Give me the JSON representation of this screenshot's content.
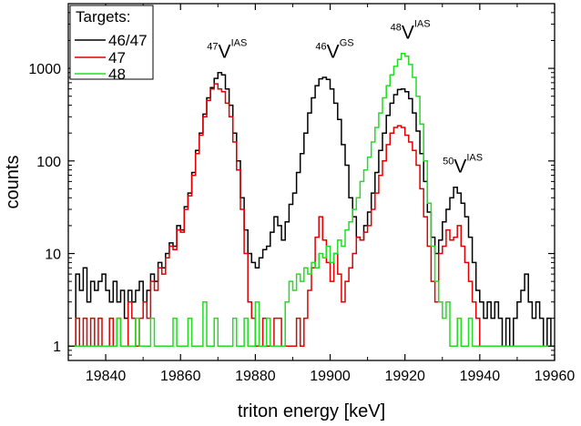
{
  "chart_data": {
    "type": "line",
    "xlabel": "triton energy [keV]",
    "ylabel": "counts",
    "xlim": [
      19830,
      19960
    ],
    "ylim": [
      0.7,
      5000
    ],
    "yscale": "log",
    "step": true,
    "x_ticks": [
      19840,
      19860,
      19880,
      19900,
      19920,
      19940,
      19960
    ],
    "y_ticks": [
      1,
      10,
      100,
      1000
    ],
    "legend": {
      "title": "Targets:",
      "position": "top-left"
    },
    "colors": {
      "46/47": "#000000",
      "47": "#e00000",
      "48": "#22dd22"
    },
    "annotations": [
      {
        "sup": "47",
        "base": "V",
        "super2": "IAS",
        "x": 19870,
        "y": 1300
      },
      {
        "sup": "46",
        "base": "V",
        "super2": "GS",
        "x": 19899,
        "y": 1300
      },
      {
        "sup": "48",
        "base": "V",
        "super2": "IAS",
        "x": 19919,
        "y": 2100
      },
      {
        "sup": "50",
        "base": "V",
        "super2": "IAS",
        "x": 19933,
        "y": 75
      }
    ],
    "series": [
      {
        "name": "46/47",
        "color": "#000000",
        "points": [
          [
            19830,
            1
          ],
          [
            19832,
            6
          ],
          [
            19833,
            4
          ],
          [
            19834,
            7
          ],
          [
            19835,
            3
          ],
          [
            19836,
            5
          ],
          [
            19837,
            4
          ],
          [
            19838,
            5
          ],
          [
            19839,
            6
          ],
          [
            19840,
            4
          ],
          [
            19841,
            3
          ],
          [
            19842,
            5
          ],
          [
            19843,
            3
          ],
          [
            19844,
            4
          ],
          [
            19845,
            2
          ],
          [
            19846,
            4
          ],
          [
            19847,
            3
          ],
          [
            19848,
            4
          ],
          [
            19849,
            5
          ],
          [
            19850,
            3
          ],
          [
            19851,
            4
          ],
          [
            19852,
            6
          ],
          [
            19853,
            5
          ],
          [
            19854,
            8
          ],
          [
            19855,
            7
          ],
          [
            19856,
            10
          ],
          [
            19857,
            13
          ],
          [
            19858,
            12
          ],
          [
            19859,
            20
          ],
          [
            19860,
            18
          ],
          [
            19861,
            32
          ],
          [
            19862,
            45
          ],
          [
            19863,
            75
          ],
          [
            19864,
            130
          ],
          [
            19865,
            200
          ],
          [
            19866,
            320
          ],
          [
            19867,
            480
          ],
          [
            19868,
            620
          ],
          [
            19869,
            780
          ],
          [
            19870,
            900
          ],
          [
            19871,
            850
          ],
          [
            19872,
            600
          ],
          [
            19873,
            400
          ],
          [
            19874,
            200
          ],
          [
            19875,
            100
          ],
          [
            19876,
            40
          ],
          [
            19877,
            18
          ],
          [
            19878,
            10
          ],
          [
            19879,
            8
          ],
          [
            19880,
            7
          ],
          [
            19881,
            9
          ],
          [
            19882,
            11
          ],
          [
            19883,
            12
          ],
          [
            19884,
            17
          ],
          [
            19885,
            25
          ],
          [
            19886,
            20
          ],
          [
            19887,
            14
          ],
          [
            19888,
            22
          ],
          [
            19889,
            34
          ],
          [
            19890,
            45
          ],
          [
            19891,
            75
          ],
          [
            19892,
            120
          ],
          [
            19893,
            200
          ],
          [
            19894,
            330
          ],
          [
            19895,
            480
          ],
          [
            19896,
            650
          ],
          [
            19897,
            770
          ],
          [
            19898,
            800
          ],
          [
            19899,
            760
          ],
          [
            19900,
            600
          ],
          [
            19901,
            420
          ],
          [
            19902,
            280
          ],
          [
            19903,
            150
          ],
          [
            19904,
            90
          ],
          [
            19905,
            40
          ],
          [
            19906,
            25
          ],
          [
            19907,
            15
          ],
          [
            19908,
            14
          ],
          [
            19909,
            20
          ],
          [
            19910,
            28
          ],
          [
            19911,
            45
          ],
          [
            19912,
            75
          ],
          [
            19913,
            130
          ],
          [
            19914,
            200
          ],
          [
            19915,
            310
          ],
          [
            19916,
            420
          ],
          [
            19917,
            520
          ],
          [
            19918,
            590
          ],
          [
            19919,
            600
          ],
          [
            19920,
            560
          ],
          [
            19921,
            470
          ],
          [
            19922,
            330
          ],
          [
            19923,
            210
          ],
          [
            19924,
            120
          ],
          [
            19925,
            60
          ],
          [
            19926,
            28
          ],
          [
            19927,
            15
          ],
          [
            19928,
            10
          ],
          [
            19929,
            14
          ],
          [
            19930,
            22
          ],
          [
            19931,
            30
          ],
          [
            19932,
            40
          ],
          [
            19933,
            52
          ],
          [
            19934,
            45
          ],
          [
            19935,
            35
          ],
          [
            19936,
            25
          ],
          [
            19937,
            15
          ],
          [
            19938,
            8
          ],
          [
            19939,
            4
          ],
          [
            19940,
            3
          ],
          [
            19941,
            2
          ],
          [
            19942,
            3
          ],
          [
            19943,
            2
          ],
          [
            19944,
            3
          ],
          [
            19945,
            2
          ],
          [
            19946,
            1
          ],
          [
            19947,
            2
          ],
          [
            19948,
            1
          ],
          [
            19949,
            2
          ],
          [
            19950,
            3
          ],
          [
            19951,
            4
          ],
          [
            19952,
            6
          ],
          [
            19953,
            3
          ],
          [
            19954,
            2
          ],
          [
            19955,
            3
          ],
          [
            19956,
            2
          ],
          [
            19957,
            1
          ],
          [
            19958,
            2
          ],
          [
            19959,
            1
          ],
          [
            19960,
            1
          ]
        ]
      },
      {
        "name": "47",
        "color": "#e00000",
        "points": [
          [
            19830,
            1
          ],
          [
            19832,
            2
          ],
          [
            19833,
            1
          ],
          [
            19834,
            2
          ],
          [
            19835,
            1
          ],
          [
            19836,
            2
          ],
          [
            19837,
            1
          ],
          [
            19838,
            2
          ],
          [
            19839,
            1
          ],
          [
            19840,
            1
          ],
          [
            19841,
            2
          ],
          [
            19842,
            1
          ],
          [
            19843,
            2
          ],
          [
            19844,
            1
          ],
          [
            19845,
            1
          ],
          [
            19846,
            3
          ],
          [
            19847,
            2
          ],
          [
            19848,
            1
          ],
          [
            19849,
            2
          ],
          [
            19850,
            3
          ],
          [
            19851,
            2
          ],
          [
            19852,
            5
          ],
          [
            19853,
            4
          ],
          [
            19854,
            7
          ],
          [
            19855,
            6
          ],
          [
            19856,
            9
          ],
          [
            19857,
            12
          ],
          [
            19858,
            11
          ],
          [
            19859,
            18
          ],
          [
            19860,
            17
          ],
          [
            19861,
            30
          ],
          [
            19862,
            42
          ],
          [
            19863,
            70
          ],
          [
            19864,
            120
          ],
          [
            19865,
            190
          ],
          [
            19866,
            300
          ],
          [
            19867,
            450
          ],
          [
            19868,
            600
          ],
          [
            19869,
            680
          ],
          [
            19870,
            600
          ],
          [
            19871,
            560
          ],
          [
            19872,
            420
          ],
          [
            19873,
            300
          ],
          [
            19874,
            160
          ],
          [
            19875,
            80
          ],
          [
            19876,
            30
          ],
          [
            19877,
            10
          ],
          [
            19878,
            3
          ],
          [
            19879,
            2
          ],
          [
            19880,
            1
          ],
          [
            19882,
            2
          ],
          [
            19883,
            1
          ],
          [
            19885,
            2
          ],
          [
            19887,
            1
          ],
          [
            19890,
            1
          ],
          [
            19891,
            2
          ],
          [
            19892,
            1
          ],
          [
            19893,
            2
          ],
          [
            19894,
            4
          ],
          [
            19895,
            7
          ],
          [
            19896,
            15
          ],
          [
            19897,
            25
          ],
          [
            19898,
            14
          ],
          [
            19899,
            8
          ],
          [
            19900,
            5
          ],
          [
            19901,
            10
          ],
          [
            19902,
            6
          ],
          [
            19903,
            3
          ],
          [
            19904,
            5
          ],
          [
            19905,
            7
          ],
          [
            19906,
            10
          ],
          [
            19907,
            15
          ],
          [
            19908,
            14
          ],
          [
            19909,
            17
          ],
          [
            19910,
            20
          ],
          [
            19911,
            30
          ],
          [
            19912,
            45
          ],
          [
            19913,
            70
          ],
          [
            19914,
            100
          ],
          [
            19915,
            150
          ],
          [
            19916,
            200
          ],
          [
            19917,
            230
          ],
          [
            19918,
            240
          ],
          [
            19919,
            230
          ],
          [
            19920,
            190
          ],
          [
            19921,
            160
          ],
          [
            19922,
            130
          ],
          [
            19923,
            90
          ],
          [
            19924,
            50
          ],
          [
            19925,
            25
          ],
          [
            19926,
            12
          ],
          [
            19927,
            5
          ],
          [
            19928,
            3
          ],
          [
            19929,
            10
          ],
          [
            19930,
            12
          ],
          [
            19931,
            18
          ],
          [
            19932,
            14
          ],
          [
            19933,
            15
          ],
          [
            19934,
            20
          ],
          [
            19935,
            12
          ],
          [
            19936,
            8
          ],
          [
            19937,
            5
          ],
          [
            19938,
            3
          ],
          [
            19939,
            2
          ],
          [
            19940,
            1
          ]
        ]
      },
      {
        "name": "48",
        "color": "#22dd22",
        "points": [
          [
            19830,
            1
          ],
          [
            19842,
            1
          ],
          [
            19843,
            2
          ],
          [
            19844,
            1
          ],
          [
            19846,
            1
          ],
          [
            19848,
            2
          ],
          [
            19849,
            1
          ],
          [
            19851,
            1
          ],
          [
            19852,
            2
          ],
          [
            19853,
            1
          ],
          [
            19856,
            1
          ],
          [
            19858,
            2
          ],
          [
            19859,
            1
          ],
          [
            19861,
            1
          ],
          [
            19862,
            2
          ],
          [
            19863,
            1
          ],
          [
            19866,
            3
          ],
          [
            19867,
            1
          ],
          [
            19869,
            2
          ],
          [
            19870,
            1
          ],
          [
            19874,
            2
          ],
          [
            19875,
            1
          ],
          [
            19877,
            2
          ],
          [
            19878,
            1
          ],
          [
            19880,
            3
          ],
          [
            19881,
            1
          ],
          [
            19883,
            2
          ],
          [
            19884,
            1
          ],
          [
            19886,
            1
          ],
          [
            19888,
            3
          ],
          [
            19889,
            5
          ],
          [
            19890,
            4
          ],
          [
            19891,
            6
          ],
          [
            19892,
            5
          ],
          [
            19893,
            7
          ],
          [
            19894,
            6
          ],
          [
            19895,
            8
          ],
          [
            19896,
            7
          ],
          [
            19897,
            10
          ],
          [
            19898,
            9
          ],
          [
            19899,
            12
          ],
          [
            19900,
            8
          ],
          [
            19901,
            10
          ],
          [
            19902,
            14
          ],
          [
            19903,
            12
          ],
          [
            19904,
            18
          ],
          [
            19905,
            22
          ],
          [
            19906,
            30
          ],
          [
            19907,
            40
          ],
          [
            19908,
            60
          ],
          [
            19909,
            80
          ],
          [
            19910,
            110
          ],
          [
            19911,
            160
          ],
          [
            19912,
            230
          ],
          [
            19913,
            330
          ],
          [
            19914,
            480
          ],
          [
            19915,
            650
          ],
          [
            19916,
            850
          ],
          [
            19917,
            1050
          ],
          [
            19918,
            1250
          ],
          [
            19919,
            1450
          ],
          [
            19920,
            1350
          ],
          [
            19921,
            1100
          ],
          [
            19922,
            800
          ],
          [
            19923,
            500
          ],
          [
            19924,
            250
          ],
          [
            19925,
            100
          ],
          [
            19926,
            35
          ],
          [
            19927,
            12
          ],
          [
            19928,
            5
          ],
          [
            19929,
            3
          ],
          [
            19930,
            2
          ],
          [
            19931,
            3
          ],
          [
            19932,
            1
          ],
          [
            19934,
            2
          ],
          [
            19935,
            1
          ],
          [
            19937,
            2
          ],
          [
            19938,
            1
          ],
          [
            19940,
            1
          ],
          [
            19945,
            1
          ],
          [
            19960,
            1
          ]
        ]
      }
    ]
  }
}
